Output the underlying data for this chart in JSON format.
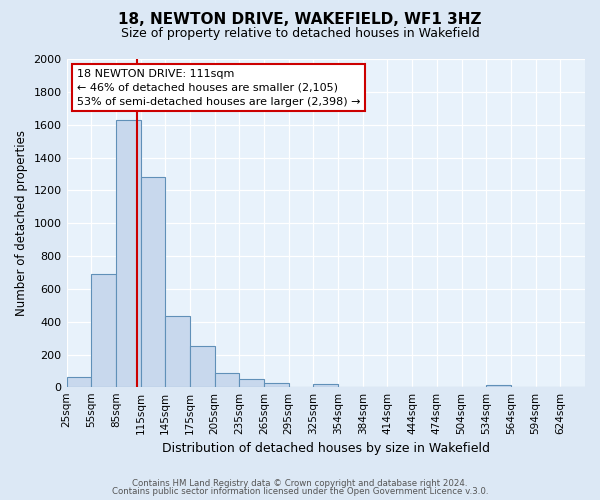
{
  "title": "18, NEWTON DRIVE, WAKEFIELD, WF1 3HZ",
  "subtitle": "Size of property relative to detached houses in Wakefield",
  "xlabel": "Distribution of detached houses by size in Wakefield",
  "ylabel": "Number of detached properties",
  "bin_labels": [
    "25sqm",
    "55sqm",
    "85sqm",
    "115sqm",
    "145sqm",
    "175sqm",
    "205sqm",
    "235sqm",
    "265sqm",
    "295sqm",
    "325sqm",
    "354sqm",
    "384sqm",
    "414sqm",
    "444sqm",
    "474sqm",
    "504sqm",
    "534sqm",
    "564sqm",
    "594sqm",
    "624sqm"
  ],
  "bar_values": [
    65,
    690,
    1630,
    1280,
    435,
    250,
    88,
    50,
    25,
    0,
    18,
    0,
    0,
    0,
    0,
    0,
    0,
    15,
    0,
    0,
    0
  ],
  "bar_color": "#c8d8ed",
  "bar_edge_color": "#6090b8",
  "property_line_x": 111,
  "property_line_label": "18 NEWTON DRIVE: 111sqm",
  "annotation_line1": "← 46% of detached houses are smaller (2,105)",
  "annotation_line2": "53% of semi-detached houses are larger (2,398) →",
  "annotation_box_color": "#ffffff",
  "annotation_box_edge": "#cc0000",
  "line_color": "#cc0000",
  "ylim": [
    0,
    2000
  ],
  "yticks": [
    0,
    200,
    400,
    600,
    800,
    1000,
    1200,
    1400,
    1600,
    1800,
    2000
  ],
  "footer1": "Contains HM Land Registry data © Crown copyright and database right 2024.",
  "footer2": "Contains public sector information licensed under the Open Government Licence v.3.0.",
  "bg_color": "#dce8f5",
  "plot_bg_color": "#e8f2fb",
  "grid_color": "#ffffff"
}
